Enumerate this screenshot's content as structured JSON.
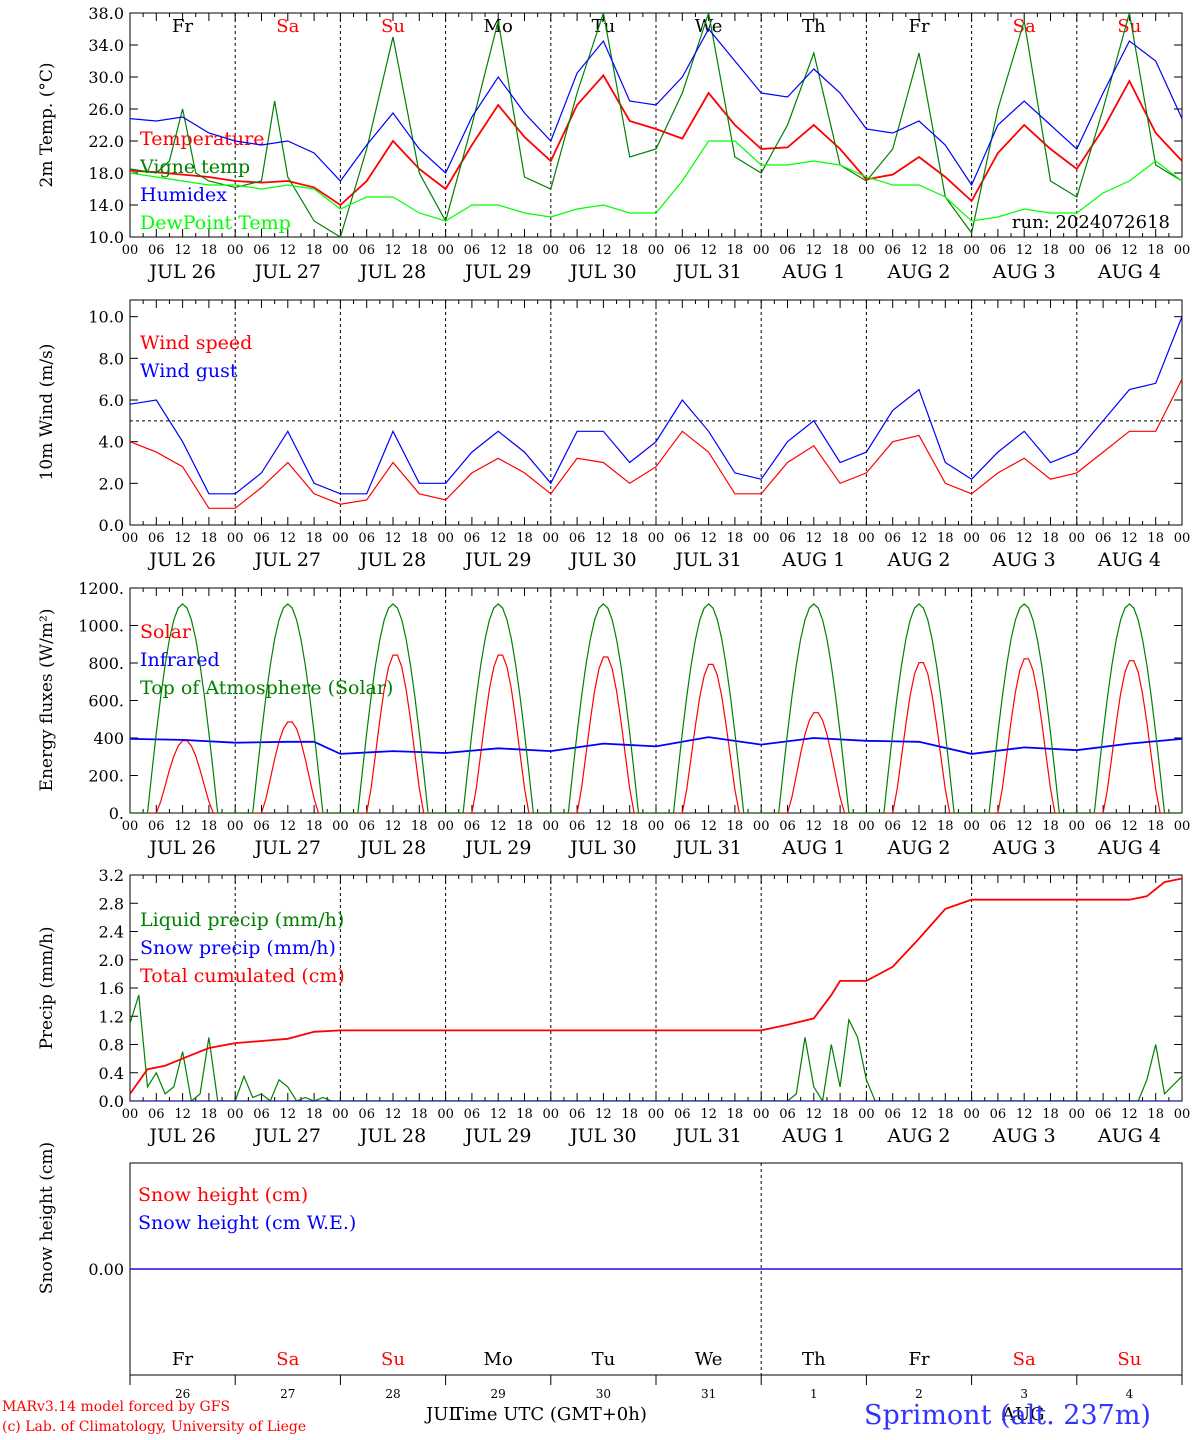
{
  "days": {
    "weekday": [
      "Fr",
      "Sa",
      "Su",
      "Mo",
      "Tu",
      "We",
      "Th",
      "Fr",
      "Sa",
      "Su"
    ],
    "weekend": [
      false,
      true,
      true,
      false,
      false,
      false,
      false,
      false,
      true,
      true
    ],
    "date_labels": [
      "JUL 26",
      "JUL 27",
      "JUL 28",
      "JUL 29",
      "JUL 30",
      "JUL 31",
      "AUG  1",
      "AUG  2",
      "AUG  3",
      "AUG  4"
    ],
    "day_numbers": [
      "26",
      "27",
      "28",
      "29",
      "30",
      "31",
      "1",
      "2",
      "3",
      "4"
    ],
    "hour_ticks": [
      "00",
      "06",
      "12",
      "18"
    ],
    "end_hour": "00"
  },
  "colors": {
    "red": "#ff0000",
    "green": "#008000",
    "blue": "#0000ff",
    "light_green": "#00ff00",
    "purple": "#800080",
    "black": "#000000"
  },
  "chart_data": [
    {
      "type": "line",
      "name": "temperature-panel",
      "ylabel": "2m Temp. (°C)",
      "ylim": [
        10,
        38
      ],
      "yticks": [
        "10.0",
        "14.0",
        "18.0",
        "22.0",
        "26.0",
        "30.0",
        "34.0",
        "38.0"
      ],
      "ytick_values": [
        10,
        14,
        18,
        22,
        26,
        30,
        34,
        38
      ],
      "annotation": "run: 2024072618",
      "x_hours_step": 6,
      "series": [
        {
          "name": "Temperature",
          "color": "#ff0000",
          "x": [
            0,
            6,
            12,
            18,
            24,
            30,
            36,
            42,
            48,
            54,
            60,
            66,
            72,
            78,
            84,
            90,
            96,
            102,
            108,
            114,
            120,
            126,
            132,
            138,
            144,
            150,
            156,
            162,
            168,
            174,
            180,
            186,
            192,
            198,
            204,
            210,
            216,
            222,
            228,
            234,
            240
          ],
          "values": [
            18.3,
            18.1,
            17.8,
            17.5,
            17.0,
            16.8,
            17.0,
            16.2,
            14.0,
            17.0,
            22.0,
            18.5,
            16.0,
            21.5,
            26.5,
            22.5,
            19.5,
            26.5,
            30.2,
            24.5,
            23.5,
            22.3,
            28.0,
            24.0,
            21.0,
            21.2,
            24.0,
            21.0,
            17.2,
            17.8,
            20.0,
            17.5,
            14.5,
            20.5,
            24.0,
            21.0,
            18.5,
            23.5,
            29.5,
            23.0,
            19.5
          ]
        },
        {
          "name": "Vigne temp",
          "color": "#008000",
          "x": [
            0,
            6,
            9,
            12,
            15,
            18,
            24,
            30,
            33,
            36,
            42,
            48,
            54,
            60,
            66,
            72,
            78,
            84,
            90,
            96,
            102,
            108,
            114,
            120,
            126,
            132,
            138,
            144,
            150,
            156,
            162,
            168,
            174,
            180,
            186,
            192,
            198,
            204,
            210,
            216,
            222,
            228,
            234,
            240
          ],
          "values": [
            18.5,
            18.0,
            19.5,
            26.0,
            18.0,
            17.0,
            16.2,
            17.0,
            27.0,
            17.5,
            12.0,
            10.0,
            21.0,
            35.0,
            18.0,
            12.0,
            24.0,
            37.0,
            17.5,
            16.0,
            28.0,
            38.0,
            20.0,
            21.0,
            28.0,
            38.0,
            20.0,
            18.0,
            24.0,
            33.0,
            19.0,
            17.0,
            21.0,
            33.0,
            15.0,
            10.5,
            26.0,
            37.0,
            17.0,
            15.0,
            26.0,
            38.0,
            19.0,
            17.0
          ]
        },
        {
          "name": "Humidex",
          "color": "#0000ff",
          "x": [
            0,
            6,
            12,
            18,
            24,
            30,
            36,
            42,
            48,
            54,
            60,
            66,
            72,
            78,
            84,
            90,
            96,
            102,
            108,
            114,
            120,
            126,
            132,
            138,
            144,
            150,
            156,
            162,
            168,
            174,
            180,
            186,
            192,
            198,
            204,
            210,
            216,
            222,
            228,
            234,
            240
          ],
          "values": [
            24.8,
            24.5,
            25.0,
            23.0,
            22.0,
            21.5,
            22.0,
            20.5,
            17.0,
            21.5,
            25.5,
            21.0,
            18.0,
            25.0,
            30.0,
            25.5,
            22.0,
            30.5,
            34.5,
            27.0,
            26.5,
            30.0,
            36.0,
            32.0,
            28.0,
            27.5,
            31.0,
            28.0,
            23.5,
            23.0,
            24.5,
            21.5,
            16.5,
            24.0,
            27.0,
            24.0,
            21.0,
            28.0,
            34.5,
            32.0,
            24.8
          ]
        },
        {
          "name": "DewPoint Temp",
          "color": "#00ff00",
          "x": [
            0,
            6,
            12,
            18,
            24,
            30,
            36,
            42,
            48,
            54,
            60,
            66,
            72,
            78,
            84,
            90,
            96,
            102,
            108,
            114,
            120,
            126,
            132,
            138,
            144,
            150,
            156,
            162,
            168,
            174,
            180,
            186,
            192,
            198,
            204,
            210,
            216,
            222,
            228,
            234,
            240
          ],
          "values": [
            18.0,
            17.5,
            17.0,
            16.5,
            16.5,
            16.0,
            16.5,
            16.0,
            13.5,
            15.0,
            15.0,
            13.0,
            12.0,
            14.0,
            14.0,
            13.0,
            12.5,
            13.5,
            14.0,
            13.0,
            13.0,
            17.0,
            22.0,
            22.0,
            19.0,
            19.0,
            19.5,
            19.0,
            17.5,
            16.5,
            16.5,
            15.0,
            12.0,
            12.5,
            13.5,
            13.0,
            13.0,
            15.5,
            17.0,
            19.5,
            17.0
          ]
        }
      ]
    },
    {
      "type": "line",
      "name": "wind-panel",
      "ylabel": "10m Wind (m/s)",
      "ylim": [
        0,
        10.8
      ],
      "yticks": [
        "0.0",
        "2.0",
        "4.0",
        "6.0",
        "8.0",
        "10.0"
      ],
      "ytick_values": [
        0,
        2,
        4,
        6,
        8,
        10
      ],
      "reference_line": 5.0,
      "series": [
        {
          "name": "Wind speed",
          "color": "#ff0000",
          "x": [
            0,
            6,
            12,
            18,
            24,
            30,
            36,
            42,
            48,
            54,
            60,
            66,
            72,
            78,
            84,
            90,
            96,
            102,
            108,
            114,
            120,
            126,
            132,
            138,
            144,
            150,
            156,
            162,
            168,
            174,
            180,
            186,
            192,
            198,
            204,
            210,
            216,
            222,
            228,
            234,
            240
          ],
          "values": [
            4.0,
            3.5,
            2.8,
            0.8,
            0.8,
            1.8,
            3.0,
            1.5,
            1.0,
            1.2,
            3.0,
            1.5,
            1.2,
            2.5,
            3.2,
            2.5,
            1.5,
            3.2,
            3.0,
            2.0,
            2.8,
            4.5,
            3.5,
            1.5,
            1.5,
            3.0,
            3.8,
            2.0,
            2.5,
            4.0,
            4.3,
            2.0,
            1.5,
            2.5,
            3.2,
            2.2,
            2.5,
            3.5,
            4.5,
            4.5,
            7.0
          ]
        },
        {
          "name": "Wind gust",
          "color": "#0000ff",
          "x": [
            0,
            6,
            12,
            18,
            24,
            30,
            36,
            42,
            48,
            54,
            60,
            66,
            72,
            78,
            84,
            90,
            96,
            102,
            108,
            114,
            120,
            126,
            132,
            138,
            144,
            150,
            156,
            162,
            168,
            174,
            180,
            186,
            192,
            198,
            204,
            210,
            216,
            222,
            228,
            234,
            240
          ],
          "values": [
            5.8,
            6.0,
            4.0,
            1.5,
            1.5,
            2.5,
            4.5,
            2.0,
            1.5,
            1.5,
            4.5,
            2.0,
            2.0,
            3.5,
            4.5,
            3.5,
            2.0,
            4.5,
            4.5,
            3.0,
            4.0,
            6.0,
            4.5,
            2.5,
            2.2,
            4.0,
            5.0,
            3.0,
            3.5,
            5.5,
            6.5,
            3.0,
            2.2,
            3.5,
            4.5,
            3.0,
            3.5,
            5.0,
            6.5,
            6.8,
            10.0
          ]
        }
      ]
    },
    {
      "type": "line",
      "name": "energy-panel",
      "ylabel": "Energy fluxes (W/m²)",
      "ylim": [
        0,
        1200
      ],
      "yticks": [
        "0.",
        "200.",
        "400",
        "600.",
        "800.",
        "1000.",
        "1200."
      ],
      "ytick_values": [
        0,
        200,
        400,
        600,
        800,
        1000,
        1200
      ],
      "series": [
        {
          "name": "Solar",
          "color": "#ff0000",
          "day_peaks": [
            390,
            490,
            850,
            850,
            840,
            800,
            540,
            810,
            830,
            820
          ]
        },
        {
          "name": "Infrared",
          "color": "#0000ff",
          "x": [
            0,
            12,
            24,
            36,
            42,
            48,
            60,
            72,
            84,
            96,
            108,
            120,
            132,
            144,
            156,
            168,
            180,
            192,
            204,
            216,
            228,
            240
          ],
          "values": [
            395,
            390,
            375,
            380,
            380,
            315,
            330,
            320,
            345,
            330,
            370,
            355,
            405,
            365,
            400,
            385,
            380,
            315,
            350,
            335,
            370,
            395
          ]
        },
        {
          "name": "Top of Atmosphere (Solar)",
          "color": "#008000",
          "peak": 1115
        }
      ]
    },
    {
      "type": "line",
      "name": "precip-panel",
      "ylabel": "Precip (mm/h)",
      "ylim": [
        0,
        3.2
      ],
      "yticks": [
        "0.0",
        "0.4",
        "0.8",
        "1.2",
        "1.6",
        "2.0",
        "2.4",
        "2.8",
        "3.2"
      ],
      "ytick_values": [
        0,
        0.4,
        0.8,
        1.2,
        1.6,
        2.0,
        2.4,
        2.8,
        3.2
      ],
      "series": [
        {
          "name": "Liquid precip (mm/h)",
          "color": "#008000",
          "x": [
            0,
            2,
            4,
            6,
            8,
            10,
            12,
            14,
            16,
            18,
            20,
            22,
            24,
            26,
            28,
            30,
            32,
            34,
            36,
            38,
            40,
            42,
            44,
            46,
            48,
            150,
            152,
            154,
            156,
            158,
            160,
            162,
            164,
            166,
            168,
            170,
            172,
            174,
            176,
            180,
            186,
            192,
            198,
            204,
            210,
            216,
            222,
            228,
            230,
            232,
            234,
            236,
            240
          ],
          "values": [
            1.1,
            1.5,
            0.2,
            0.4,
            0.1,
            0.2,
            0.7,
            0.0,
            0.1,
            0.9,
            0.0,
            0.0,
            0.0,
            0.35,
            0.05,
            0.1,
            0.0,
            0.3,
            0.2,
            0.0,
            0.05,
            0.0,
            0.05,
            0.0,
            0.0,
            0.0,
            0.1,
            0.9,
            0.2,
            0.0,
            0.8,
            0.2,
            1.15,
            0.9,
            0.3,
            0.0,
            0.0,
            0.0,
            0.0,
            0.0,
            0.0,
            0.0,
            0.0,
            0.0,
            0.0,
            0.0,
            0.0,
            0.0,
            0.0,
            0.3,
            0.8,
            0.1,
            0.35
          ]
        },
        {
          "name": "Snow precip (mm/h)",
          "color": "#0000ff",
          "x": [
            0,
            240
          ],
          "values": [
            0,
            0
          ]
        },
        {
          "name": "Total cumulated (cm)",
          "color": "#ff0000",
          "x": [
            0,
            4,
            8,
            12,
            18,
            24,
            30,
            36,
            42,
            48,
            96,
            144,
            150,
            156,
            160,
            162,
            168,
            174,
            180,
            186,
            192,
            200,
            208,
            216,
            224,
            228,
            232,
            236,
            240
          ],
          "values": [
            0.1,
            0.45,
            0.5,
            0.6,
            0.75,
            0.82,
            0.85,
            0.88,
            0.98,
            1.0,
            1.0,
            1.0,
            1.08,
            1.17,
            1.5,
            1.7,
            1.7,
            1.9,
            2.3,
            2.72,
            2.85,
            2.85,
            2.85,
            2.85,
            2.85,
            2.85,
            2.9,
            3.1,
            3.15
          ]
        }
      ]
    },
    {
      "type": "line",
      "name": "snow-panel",
      "ylabel": "Snow height (cm)",
      "ylim": [
        -1,
        1
      ],
      "yticks": [
        "0.00"
      ],
      "ytick_values": [
        0
      ],
      "series": [
        {
          "name": "Snow height (cm)",
          "color": "#ff0000",
          "x": [
            0,
            240
          ],
          "values": [
            0,
            0
          ]
        },
        {
          "name": "Snow height (cm W.E.)",
          "color": "#0000ff",
          "x": [
            0,
            240
          ],
          "values": [
            0,
            0
          ]
        }
      ]
    }
  ],
  "footer": {
    "model_line": "MARv3.14 model forced by GFS",
    "lab_line": "(c) Lab. of Climatology, University of Liege",
    "month_jul": "JUL",
    "month_aug": "AUG",
    "xaxis_title": "Time UTC (GMT+0h)",
    "station": "Sprimont (alt. 237m)"
  }
}
